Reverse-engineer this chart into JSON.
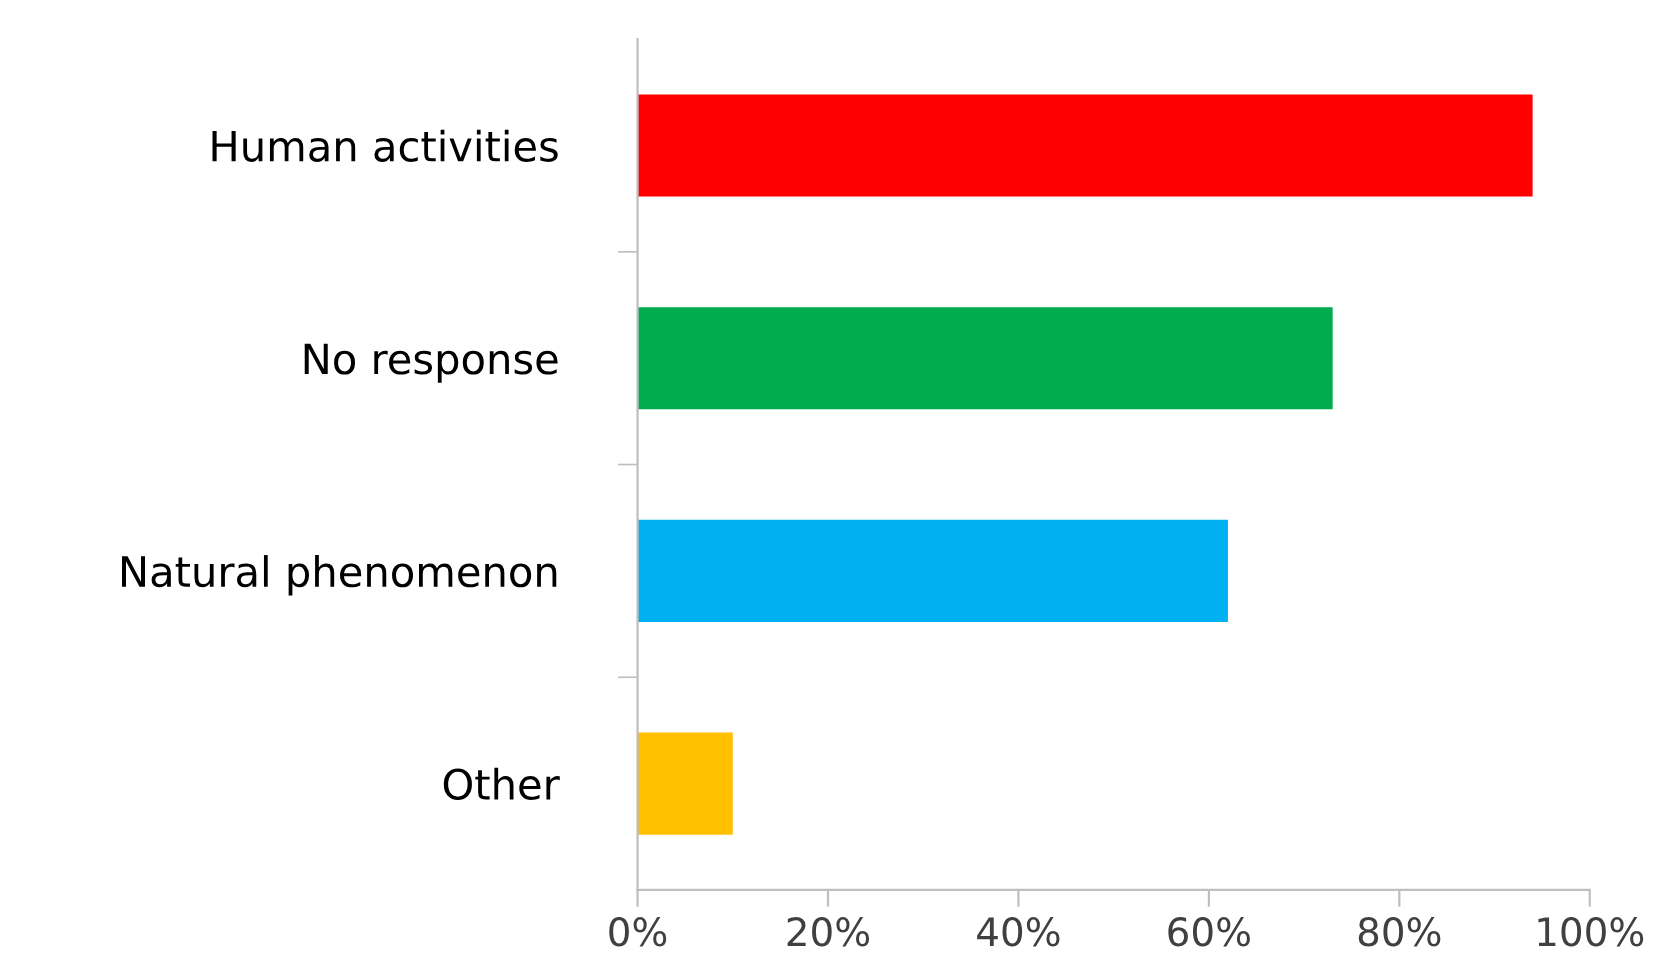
{
  "chart_data": {
    "type": "bar",
    "orientation": "horizontal",
    "categories": [
      "Human activities",
      "No response",
      "Natural phenomenon",
      "Other"
    ],
    "values": [
      94,
      73,
      62,
      10
    ],
    "colors": [
      "#ff0000",
      "#00ac4e",
      "#00b0f0",
      "#ffc000"
    ],
    "xlim": [
      0,
      100
    ],
    "xticks": [
      {
        "value": 0,
        "label": "0%"
      },
      {
        "value": 20,
        "label": "20%"
      },
      {
        "value": 40,
        "label": "40%"
      },
      {
        "value": 60,
        "label": "60%"
      },
      {
        "value": 80,
        "label": "80%"
      },
      {
        "value": 100,
        "label": "100%"
      }
    ],
    "grid": false,
    "legend": false
  }
}
